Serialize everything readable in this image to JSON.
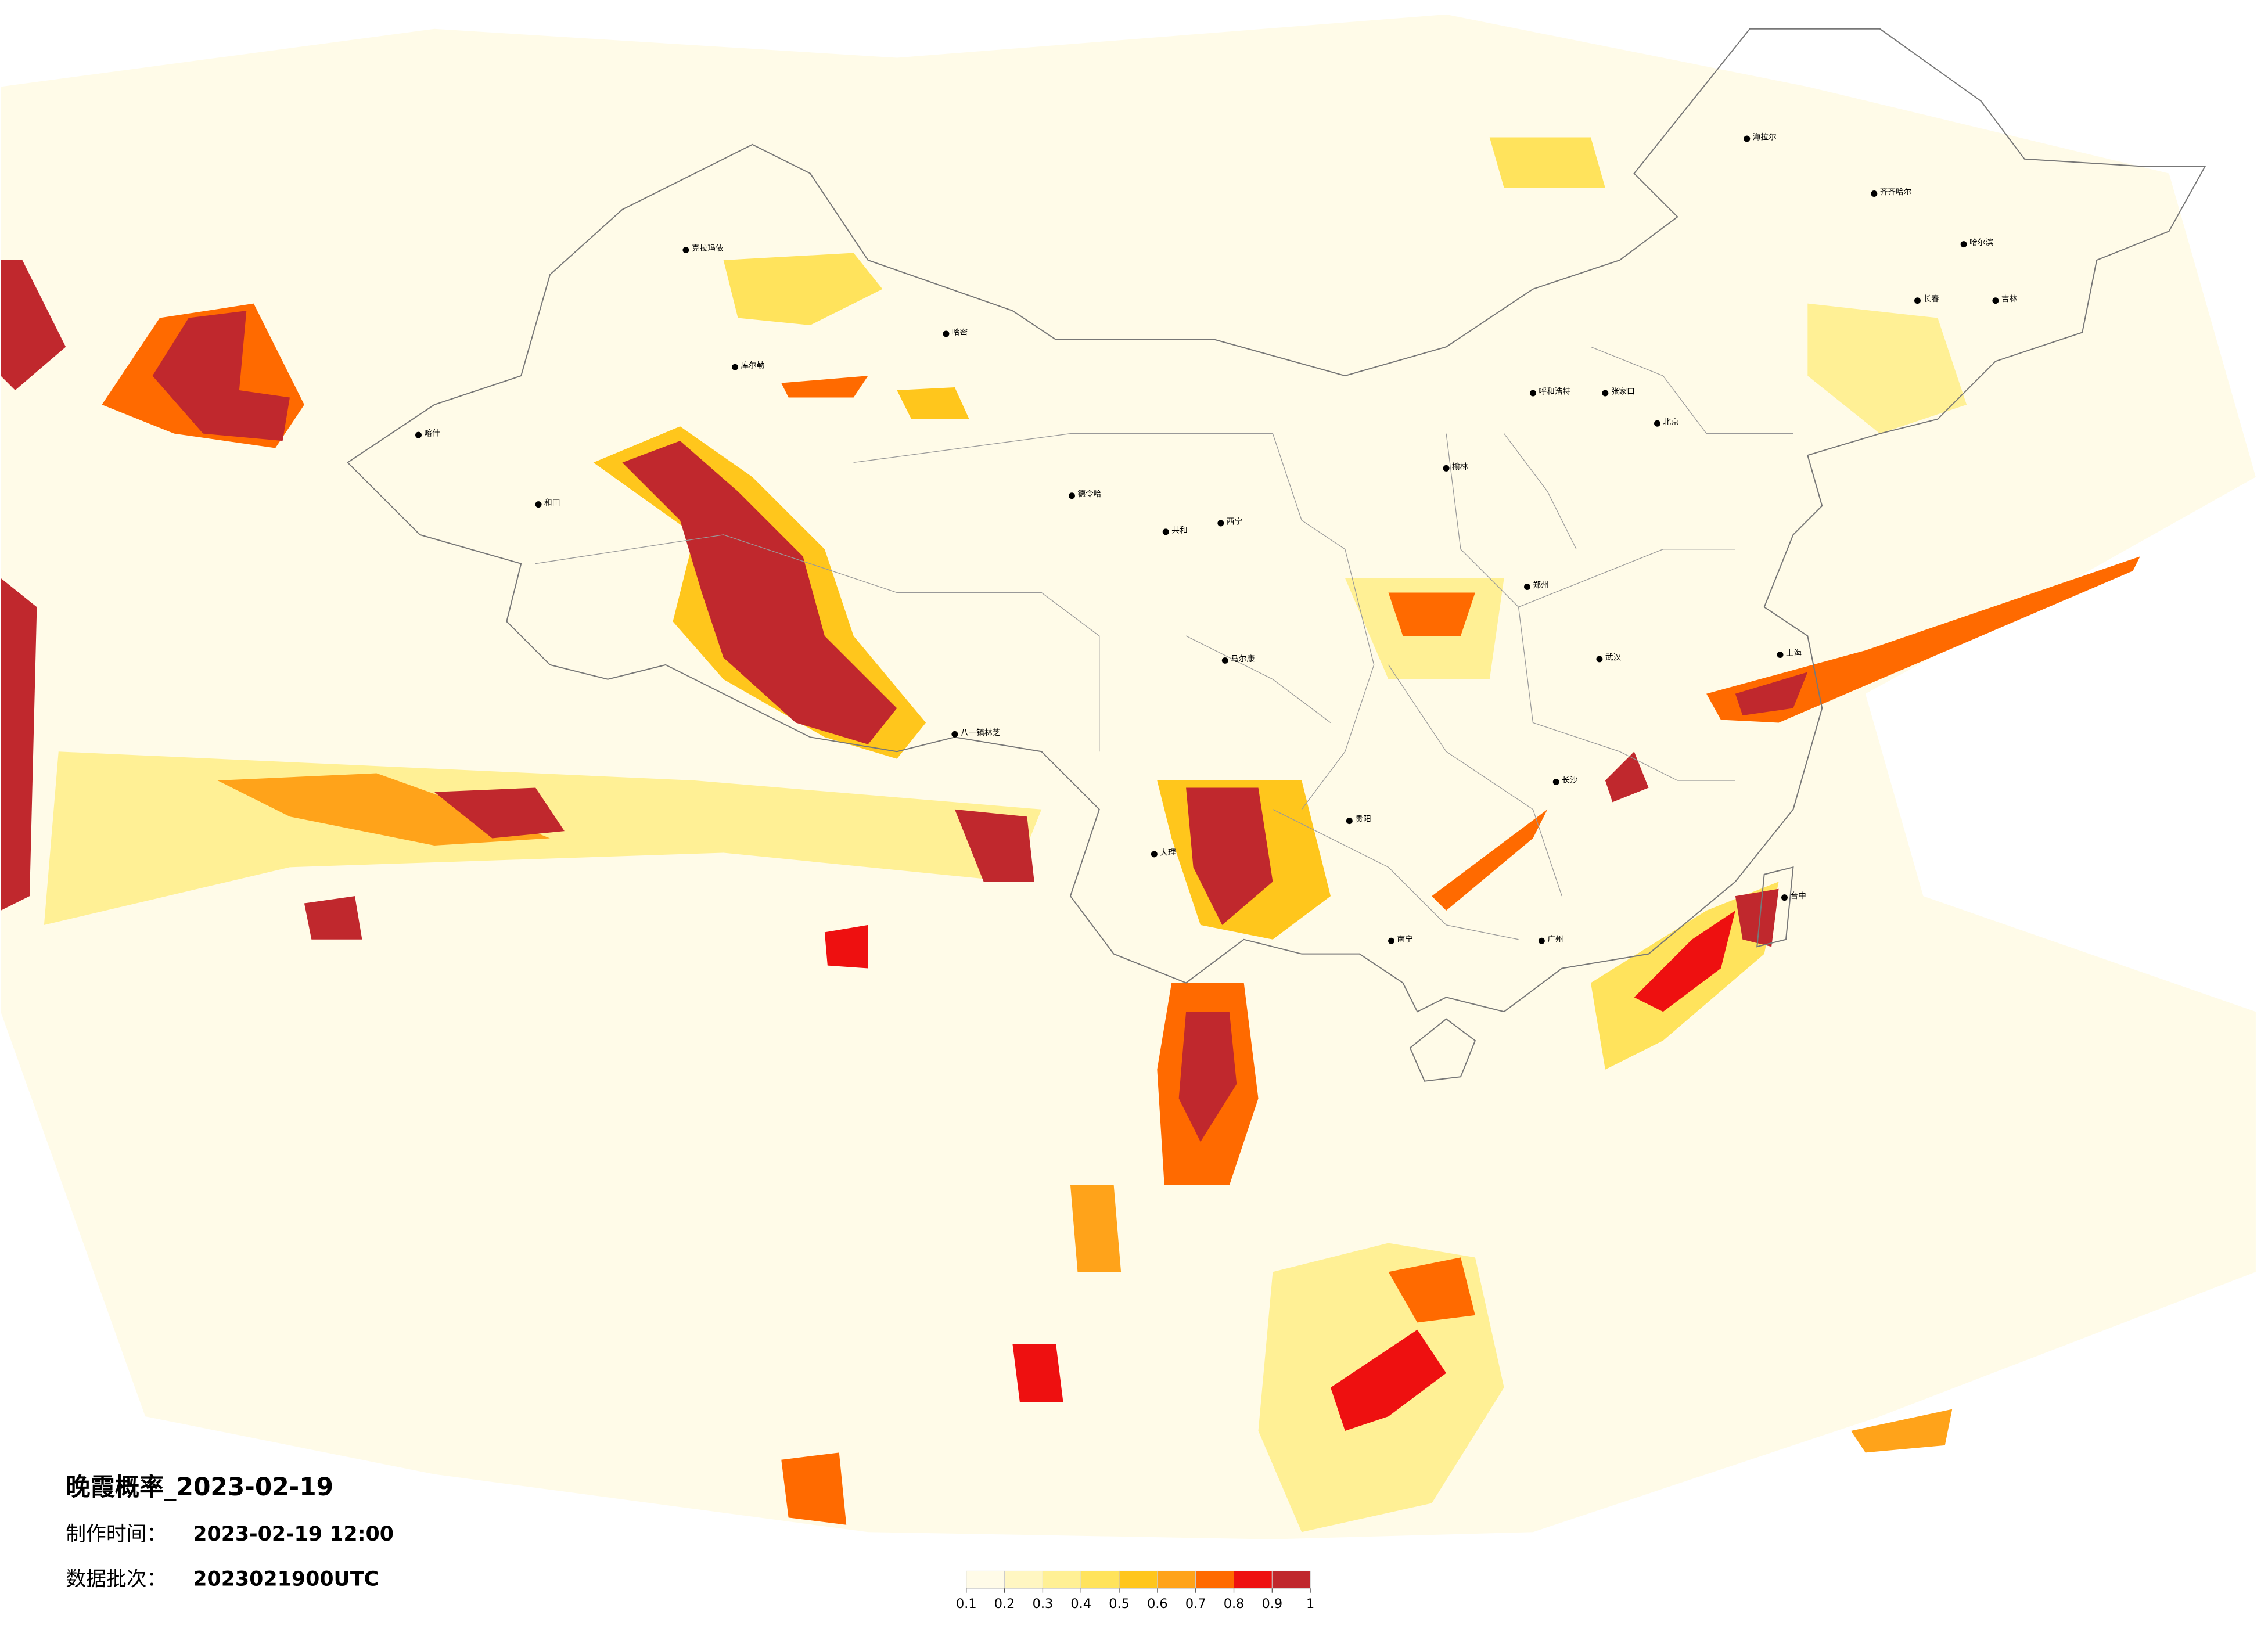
{
  "title": "晚霞概率_2023-02-19",
  "made_label": "制作时间：",
  "made_time": "2023-02-19 12:00",
  "batch_label": "数据批次：",
  "batch": "2023021900UTC",
  "legend": {
    "ticks": [
      0.1,
      0.2,
      0.3,
      0.4,
      0.5,
      0.6,
      0.7,
      0.8,
      0.9,
      1
    ],
    "colors": [
      "#fffbe8",
      "#fff6c2",
      "#fff095",
      "#ffe35c",
      "#ffc61c",
      "#ffa31a",
      "#ff6a00",
      "#ee1010",
      "#c0282d"
    ]
  },
  "cities": [
    "克拉玛依",
    "哈密",
    "和田",
    "库尔勒",
    "海拉尔",
    "齐齐哈尔",
    "哈尔滨",
    "长春",
    "吉林",
    "呼和浩特",
    "张家口",
    "榆林",
    "西宁",
    "共和",
    "德令哈",
    "马尔康",
    "贵阳",
    "南宁",
    "大理",
    "台中",
    "北京",
    "郑州",
    "武汉",
    "长沙",
    "广州",
    "上海",
    "八一镇林芝",
    "喀什"
  ]
}
